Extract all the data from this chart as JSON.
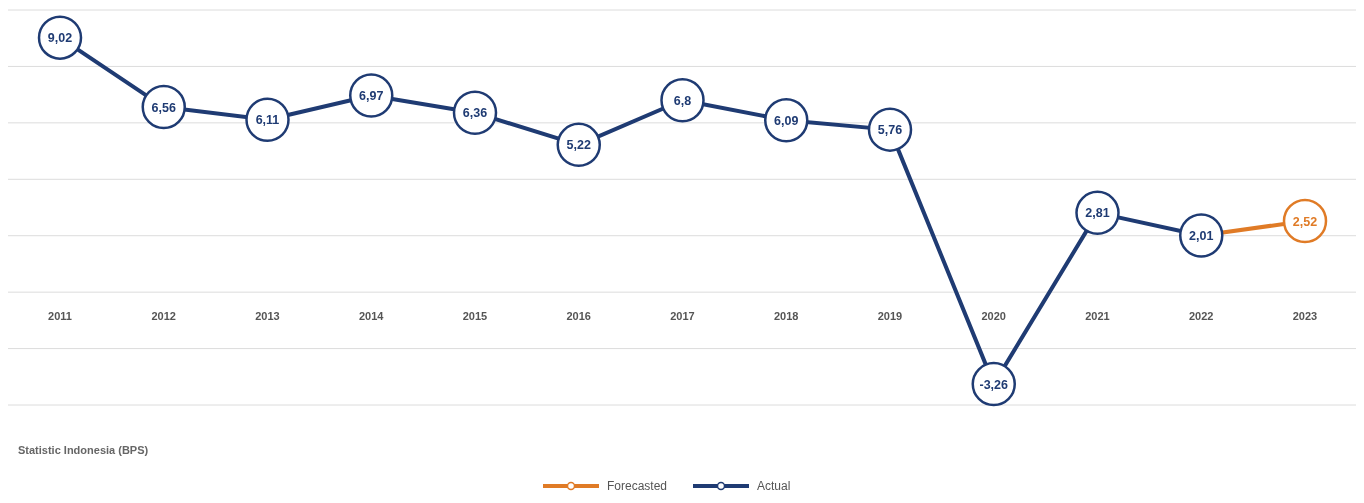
{
  "chart_data": {
    "type": "line",
    "categories": [
      "2011",
      "2012",
      "2013",
      "2014",
      "2015",
      "2016",
      "2017",
      "2018",
      "2019",
      "2020",
      "2021",
      "2022",
      "2023"
    ],
    "series": [
      {
        "name": "Forecasted",
        "color": "#e07b26",
        "values": [
          null,
          null,
          null,
          null,
          null,
          null,
          null,
          null,
          null,
          null,
          null,
          2.01,
          2.52
        ],
        "value_labels": [
          null,
          null,
          null,
          null,
          null,
          null,
          null,
          null,
          null,
          null,
          null,
          null,
          "2,52"
        ]
      },
      {
        "name": "Actual",
        "color": "#1f3b73",
        "values": [
          9.02,
          6.56,
          6.11,
          6.97,
          6.36,
          5.22,
          6.8,
          6.09,
          5.76,
          -3.26,
          2.81,
          2.01,
          null
        ],
        "value_labels": [
          "9,02",
          "6,56",
          "6,11",
          "6,97",
          "6,36",
          "5,22",
          "6,8",
          "6,09",
          "5,76",
          "-3,26",
          "2,81",
          "2,01",
          null
        ]
      }
    ],
    "ylim": [
      -4,
      10
    ],
    "yticks": [
      {
        "value": -4,
        "label": null
      },
      {
        "value": -2,
        "label": null
      },
      {
        "value": 0,
        "label": null
      },
      {
        "value": 2,
        "label": null
      },
      {
        "value": 4,
        "label": null
      },
      {
        "value": 6,
        "label": null
      },
      {
        "value": 8,
        "label": null
      },
      {
        "value": 10,
        "label": null
      }
    ],
    "tick_labels": "x",
    "grid": "y",
    "legend": "bottom",
    "marker": "circle",
    "line_style": "solid",
    "annotations": [
      "Statistic Indonesia (BPS)"
    ]
  }
}
